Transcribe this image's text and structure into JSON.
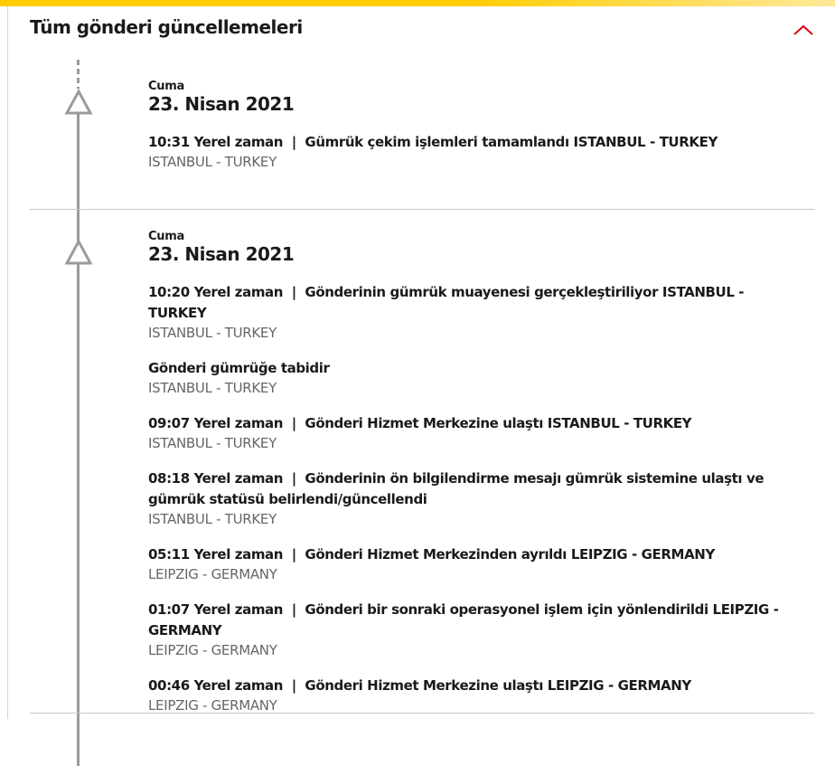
{
  "header": {
    "title": "Tüm gönderi güncellemeleri",
    "collapse_icon": "chevron-up-icon",
    "accent": "#d40511",
    "brand": "#ffcc00"
  },
  "groups": [
    {
      "day": "Cuma",
      "date": "23. Nisan 2021",
      "events": [
        {
          "text": "10:31 Yerel zaman  |  Gümrük çekim işlemleri tamamlandı ISTANBUL - TURKEY",
          "location": "ISTANBUL - TURKEY"
        }
      ]
    },
    {
      "day": "Cuma",
      "date": "23. Nisan 2021",
      "events": [
        {
          "text": "10:20 Yerel zaman  |  Gönderinin gümrük muayenesi gerçekleştiriliyor ISTANBUL - TURKEY",
          "location": "ISTANBUL - TURKEY"
        },
        {
          "text": "Gönderi gümrüğe tabidir",
          "location": "ISTANBUL - TURKEY"
        },
        {
          "text": "09:07 Yerel zaman  |  Gönderi Hizmet Merkezine ulaştı ISTANBUL - TURKEY",
          "location": "ISTANBUL - TURKEY"
        },
        {
          "text": "08:18 Yerel zaman  |  Gönderinin ön bilgilendirme mesajı gümrük sistemine ulaştı ve gümrük statüsü belirlendi/güncellendi",
          "location": "ISTANBUL - TURKEY"
        },
        {
          "text": "05:11 Yerel zaman  |  Gönderi Hizmet Merkezinden ayrıldı LEIPZIG - GERMANY",
          "location": "LEIPZIG - GERMANY"
        },
        {
          "text": "01:07 Yerel zaman  |  Gönderi bir sonraki operasyonel işlem için yönlendirildi LEIPZIG - GERMANY",
          "location": "LEIPZIG - GERMANY"
        },
        {
          "text": "00:46 Yerel zaman  |  Gönderi Hizmet Merkezine ulaştı LEIPZIG - GERMANY",
          "location": "LEIPZIG - GERMANY"
        }
      ]
    }
  ]
}
